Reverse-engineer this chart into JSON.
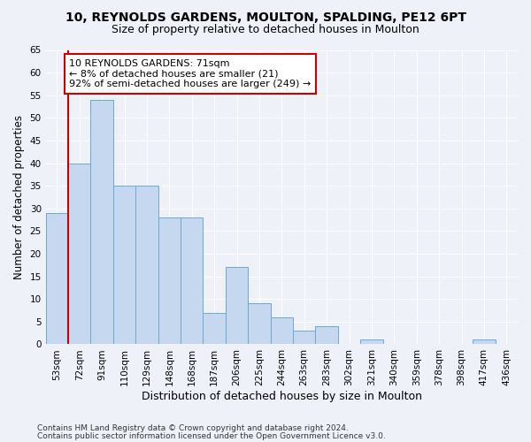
{
  "title1": "10, REYNOLDS GARDENS, MOULTON, SPALDING, PE12 6PT",
  "title2": "Size of property relative to detached houses in Moulton",
  "xlabel": "Distribution of detached houses by size in Moulton",
  "ylabel": "Number of detached properties",
  "categories": [
    "53sqm",
    "72sqm",
    "91sqm",
    "110sqm",
    "129sqm",
    "148sqm",
    "168sqm",
    "187sqm",
    "206sqm",
    "225sqm",
    "244sqm",
    "263sqm",
    "283sqm",
    "302sqm",
    "321sqm",
    "340sqm",
    "359sqm",
    "378sqm",
    "398sqm",
    "417sqm",
    "436sqm"
  ],
  "values": [
    29,
    40,
    54,
    35,
    35,
    28,
    28,
    7,
    17,
    9,
    6,
    3,
    4,
    0,
    1,
    0,
    0,
    0,
    0,
    1,
    0
  ],
  "bar_color": "#c5d8f0",
  "bar_edge_color": "#6aaad4",
  "vline_color": "#cc0000",
  "annotation_text": "10 REYNOLDS GARDENS: 71sqm\n← 8% of detached houses are smaller (21)\n92% of semi-detached houses are larger (249) →",
  "annotation_box_color": "#ffffff",
  "annotation_border_color": "#cc0000",
  "ylim": [
    0,
    65
  ],
  "yticks": [
    0,
    5,
    10,
    15,
    20,
    25,
    30,
    35,
    40,
    45,
    50,
    55,
    60,
    65
  ],
  "footer1": "Contains HM Land Registry data © Crown copyright and database right 2024.",
  "footer2": "Contains public sector information licensed under the Open Government Licence v3.0.",
  "background_color": "#eef2f8",
  "plot_background": "#eef2f8",
  "title1_fontsize": 10,
  "title2_fontsize": 9,
  "annot_fontsize": 8,
  "tick_fontsize": 7.5,
  "ylabel_fontsize": 8.5,
  "xlabel_fontsize": 9,
  "footer_fontsize": 6.5
}
